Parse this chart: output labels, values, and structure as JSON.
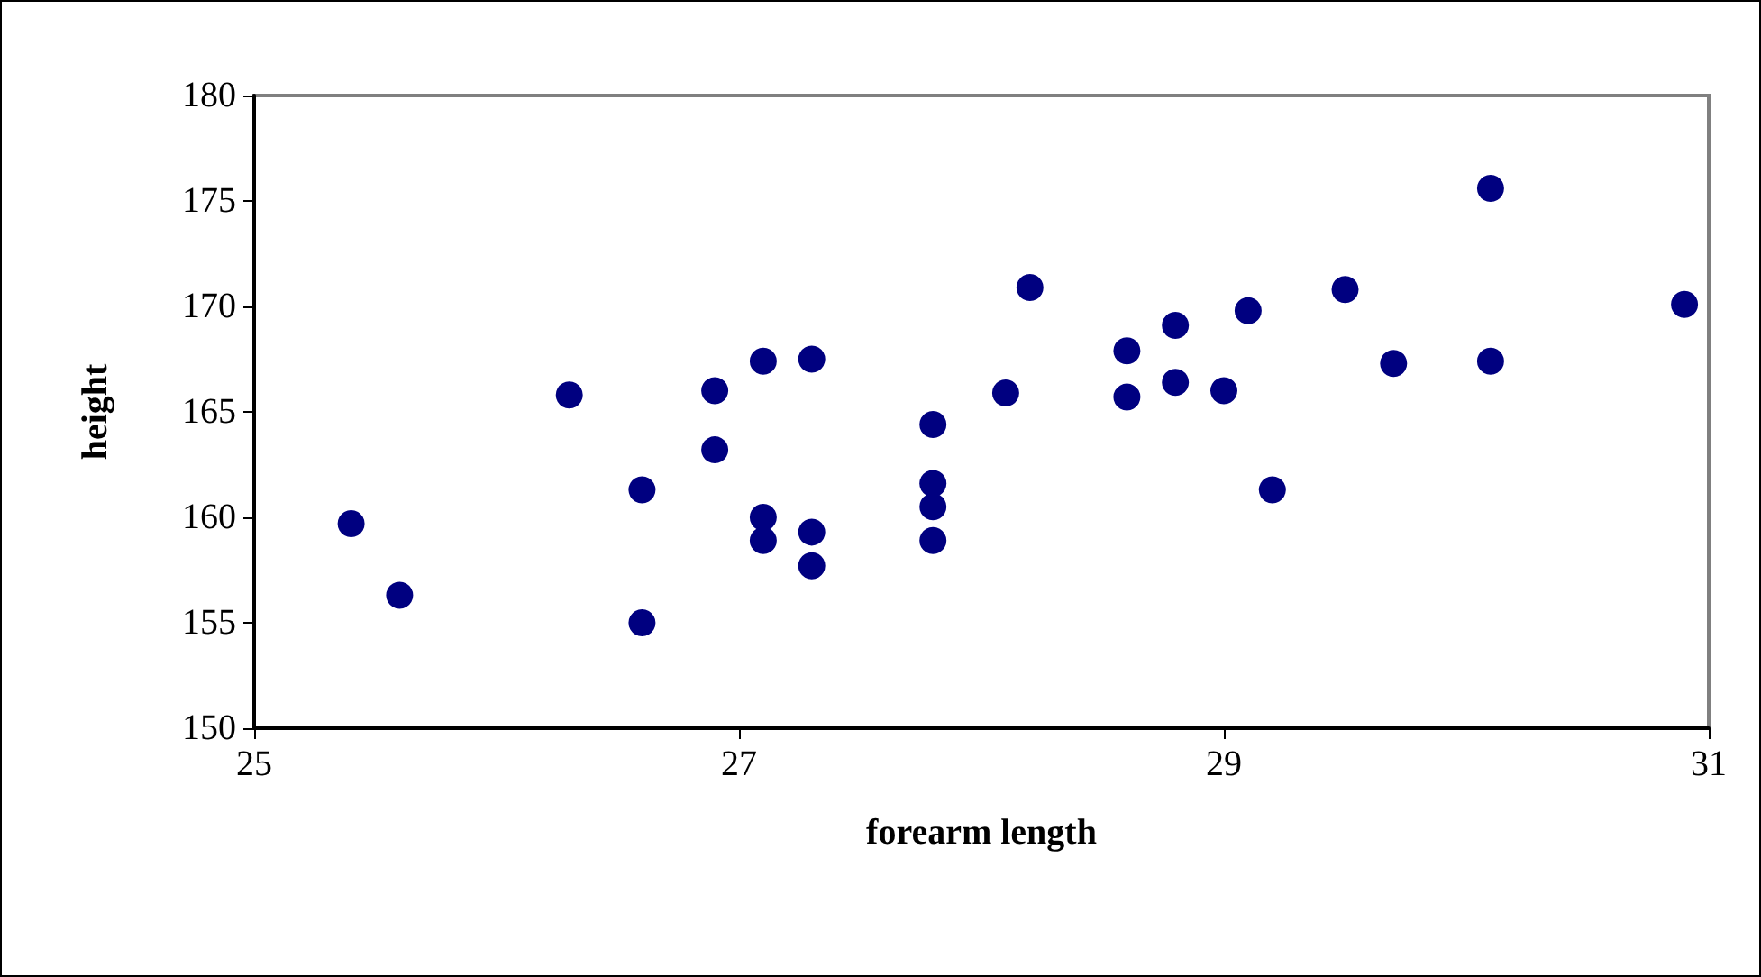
{
  "chart_data": {
    "type": "scatter",
    "xlabel": "forearm length",
    "ylabel": "height",
    "x": [
      25.4,
      25.6,
      26.3,
      26.6,
      26.6,
      26.9,
      26.9,
      27.1,
      27.1,
      27.1,
      27.3,
      27.3,
      27.3,
      27.8,
      27.8,
      27.8,
      27.8,
      28.1,
      28.2,
      28.6,
      28.6,
      28.8,
      28.8,
      29.0,
      29.1,
      29.2,
      29.5,
      29.7,
      30.1,
      30.1,
      30.9
    ],
    "series": [
      {
        "color": "#000080",
        "values": [
          159.7,
          156.3,
          165.8,
          161.3,
          155.0,
          166.0,
          163.2,
          167.4,
          160.0,
          158.9,
          167.5,
          159.3,
          157.7,
          164.4,
          161.6,
          160.5,
          158.9,
          165.9,
          170.9,
          167.9,
          165.7,
          169.1,
          166.4,
          166.0,
          169.8,
          161.3,
          170.8,
          167.3,
          175.6,
          167.4,
          170.1
        ]
      }
    ],
    "xlim": [
      25,
      31
    ],
    "xticks": [
      25,
      27,
      29,
      31
    ],
    "ylim": [
      150,
      180
    ],
    "yticks": [
      150,
      155,
      160,
      165,
      170,
      175,
      180
    ],
    "marker": "circle"
  }
}
